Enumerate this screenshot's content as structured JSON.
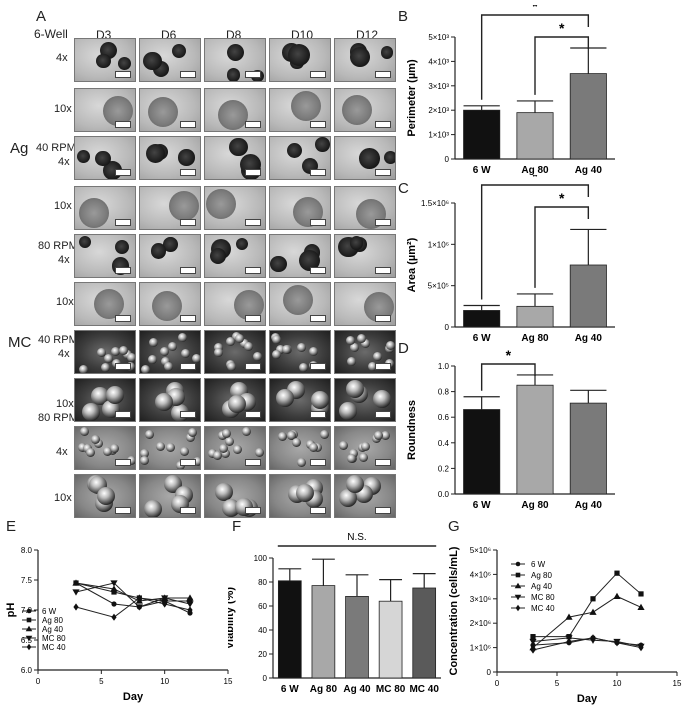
{
  "panel_letters": {
    "a": "A",
    "b": "B",
    "c": "C",
    "d": "D",
    "e": "E",
    "f": "F",
    "g": "G"
  },
  "panel_a": {
    "columns": [
      "D3",
      "D6",
      "D8",
      "D10",
      "D12"
    ],
    "header_label": "6-Well",
    "groups": {
      "ag": "Ag",
      "mc": "MC"
    },
    "rows": [
      {
        "label": "4x",
        "group": "6w",
        "style": "light"
      },
      {
        "label": "10x",
        "group": "6w",
        "style": "light"
      },
      {
        "label": "40 RPM\n4x",
        "group": "ag",
        "style": "light"
      },
      {
        "label": "10x",
        "group": "ag",
        "style": "light"
      },
      {
        "label": "80 RPM\n4x",
        "group": "ag",
        "style": "light"
      },
      {
        "label": "10x",
        "group": "ag",
        "style": "light"
      },
      {
        "label": "40 RPM\n4x",
        "group": "mc",
        "style": "dark"
      },
      {
        "label": "10x",
        "group": "mc",
        "style": "dark"
      },
      {
        "label": "80 RPM",
        "group": "mc",
        "style": "grey"
      },
      {
        "label": "4x",
        "group": "mc",
        "style": "grey"
      },
      {
        "label": "10x",
        "group": "mc",
        "style": "grey"
      }
    ]
  },
  "chart_data": [
    {
      "panel": "B",
      "type": "bar",
      "categories": [
        "6 W",
        "Ag 80",
        "Ag 40"
      ],
      "values": [
        2000,
        1900,
        3500
      ],
      "errors": [
        180,
        480,
        1050
      ],
      "colors": [
        "#111111",
        "#a8a8a8",
        "#7a7a7a"
      ],
      "ylabel": "Perimeter (µm)",
      "ylim": [
        0,
        5000
      ],
      "yticks": [
        "0",
        "1×10³",
        "2×10³",
        "3×10³",
        "4×10³",
        "5×10³"
      ],
      "significance": [
        {
          "from": 0,
          "to": 2,
          "label": "*"
        },
        {
          "from": 1,
          "to": 2,
          "label": "*"
        }
      ]
    },
    {
      "panel": "C",
      "type": "bar",
      "categories": [
        "6 W",
        "Ag 80",
        "Ag 40"
      ],
      "values": [
        200000,
        250000,
        750000
      ],
      "errors": [
        60000,
        150000,
        430000
      ],
      "colors": [
        "#111111",
        "#a8a8a8",
        "#7a7a7a"
      ],
      "ylabel": "Area  (µm²)",
      "ylim": [
        0,
        1500000
      ],
      "yticks": [
        "0",
        "5×10⁵",
        "1×10⁶",
        "1.5×10⁶"
      ],
      "significance": [
        {
          "from": 0,
          "to": 2,
          "label": "*"
        },
        {
          "from": 1,
          "to": 2,
          "label": "*"
        }
      ]
    },
    {
      "panel": "D",
      "type": "bar",
      "categories": [
        "6 W",
        "Ag 80",
        "Ag 40"
      ],
      "values": [
        0.66,
        0.85,
        0.71
      ],
      "errors": [
        0.1,
        0.08,
        0.1
      ],
      "colors": [
        "#111111",
        "#a8a8a8",
        "#7a7a7a"
      ],
      "ylabel": "Roundness",
      "ylim": [
        0,
        1.0
      ],
      "yticks": [
        "0.0",
        "0.2",
        "0.4",
        "0.6",
        "0.8",
        "1.0"
      ],
      "significance": [
        {
          "from": 0,
          "to": 1,
          "label": "*"
        }
      ]
    },
    {
      "panel": "E",
      "type": "line",
      "xlabel": "Day",
      "ylabel": "pH",
      "xlim": [
        0,
        15
      ],
      "ylim": [
        6.0,
        8.0
      ],
      "xticks": [
        "0",
        "5",
        "10",
        "15"
      ],
      "yticks": [
        "6.0",
        "6.5",
        "7.0",
        "7.5",
        "8.0"
      ],
      "series": [
        {
          "name": "6 W",
          "marker": "circle",
          "x": [
            3,
            6,
            8,
            10,
            12
          ],
          "y": [
            7.45,
            7.1,
            7.05,
            7.15,
            6.95
          ]
        },
        {
          "name": "Ag 80",
          "marker": "square",
          "x": [
            3,
            6,
            8,
            10,
            12
          ],
          "y": [
            7.45,
            7.3,
            7.2,
            7.15,
            7.15
          ]
        },
        {
          "name": "Ag 40",
          "marker": "triangle",
          "x": [
            3,
            6,
            8,
            10,
            12
          ],
          "y": [
            7.45,
            7.35,
            7.15,
            7.2,
            7.2
          ]
        },
        {
          "name": "MC 80",
          "marker": "triangle-down",
          "x": [
            3,
            6,
            8,
            10,
            12
          ],
          "y": [
            7.3,
            7.45,
            7.05,
            7.2,
            7.1
          ]
        },
        {
          "name": "MC 40",
          "marker": "diamond",
          "x": [
            3,
            6,
            8,
            10,
            12
          ],
          "y": [
            7.05,
            6.88,
            7.2,
            7.1,
            7.0
          ]
        }
      ]
    },
    {
      "panel": "F",
      "type": "bar",
      "categories": [
        "6 W",
        "Ag 80",
        "Ag 40",
        "MC 80",
        "MC 40"
      ],
      "values": [
        81,
        77,
        68,
        64,
        75
      ],
      "errors": [
        10,
        22,
        18,
        18,
        12
      ],
      "colors": [
        "#111111",
        "#a8a8a8",
        "#7a7a7a",
        "#d6d6d6",
        "#5a5a5a"
      ],
      "ylabel": "Viability (%)",
      "ylim": [
        0,
        100
      ],
      "yticks": [
        "0",
        "20",
        "40",
        "60",
        "80",
        "100"
      ],
      "annotation": "N.S."
    },
    {
      "panel": "G",
      "type": "line",
      "xlabel": "Day",
      "ylabel": "Concentration (cells/mL)",
      "xlim": [
        0,
        15
      ],
      "ylim": [
        0,
        5000000
      ],
      "xticks": [
        "0",
        "5",
        "10",
        "15"
      ],
      "yticks": [
        "0",
        "1×10⁶",
        "2×10⁶",
        "3×10⁶",
        "4×10⁶",
        "5×10⁶"
      ],
      "series": [
        {
          "name": "6 W",
          "marker": "circle",
          "x": [
            3,
            6,
            8,
            10,
            12
          ],
          "y": [
            1100000,
            1200000,
            1400000,
            1200000,
            1100000
          ]
        },
        {
          "name": "Ag 80",
          "marker": "square",
          "x": [
            3,
            6,
            8,
            10,
            12
          ],
          "y": [
            1450000,
            1450000,
            3000000,
            4050000,
            3200000
          ]
        },
        {
          "name": "Ag 40",
          "marker": "triangle",
          "x": [
            3,
            6,
            8,
            10,
            12
          ],
          "y": [
            1000000,
            2250000,
            2450000,
            3100000,
            2650000
          ]
        },
        {
          "name": "MC 80",
          "marker": "triangle-down",
          "x": [
            3,
            6,
            8,
            10,
            12
          ],
          "y": [
            1250000,
            1400000,
            1300000,
            1250000,
            1050000
          ]
        },
        {
          "name": "MC 40",
          "marker": "diamond",
          "x": [
            3,
            6,
            8,
            10,
            12
          ],
          "y": [
            900000,
            1250000,
            1400000,
            1200000,
            1000000
          ]
        }
      ]
    }
  ]
}
